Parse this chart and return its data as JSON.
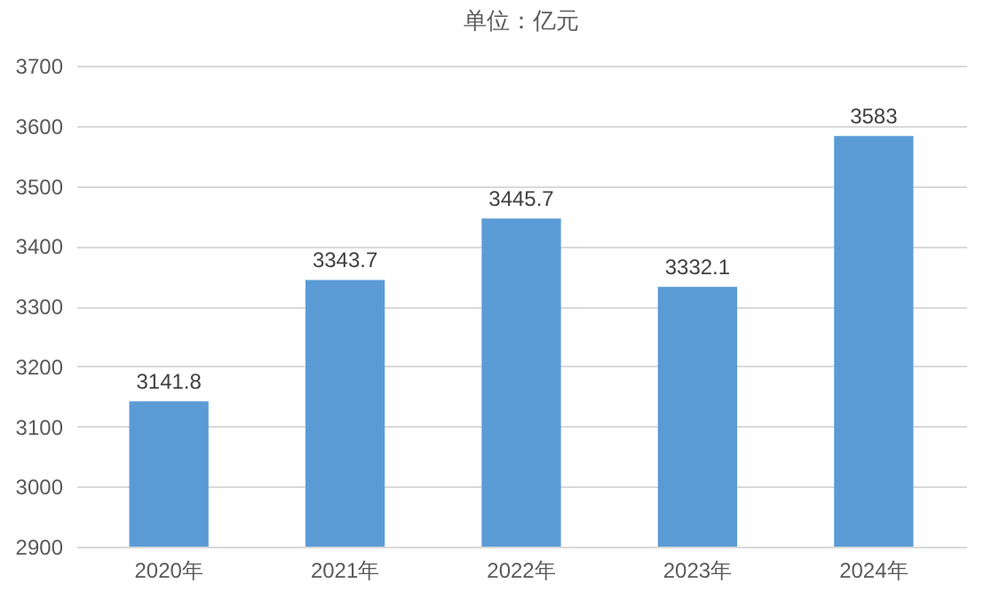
{
  "chart_data": {
    "type": "bar",
    "title": "单位：亿元",
    "categories": [
      "2020年",
      "2021年",
      "2022年",
      "2023年",
      "2024年"
    ],
    "values": [
      3141.8,
      3343.7,
      3445.7,
      3332.1,
      3583
    ],
    "color": "#5b9bd5",
    "ylim": [
      2900,
      3700
    ],
    "yticks": [
      2900,
      3000,
      3100,
      3200,
      3300,
      3400,
      3500,
      3600,
      3700
    ],
    "grid": "y",
    "data_labels": true
  }
}
